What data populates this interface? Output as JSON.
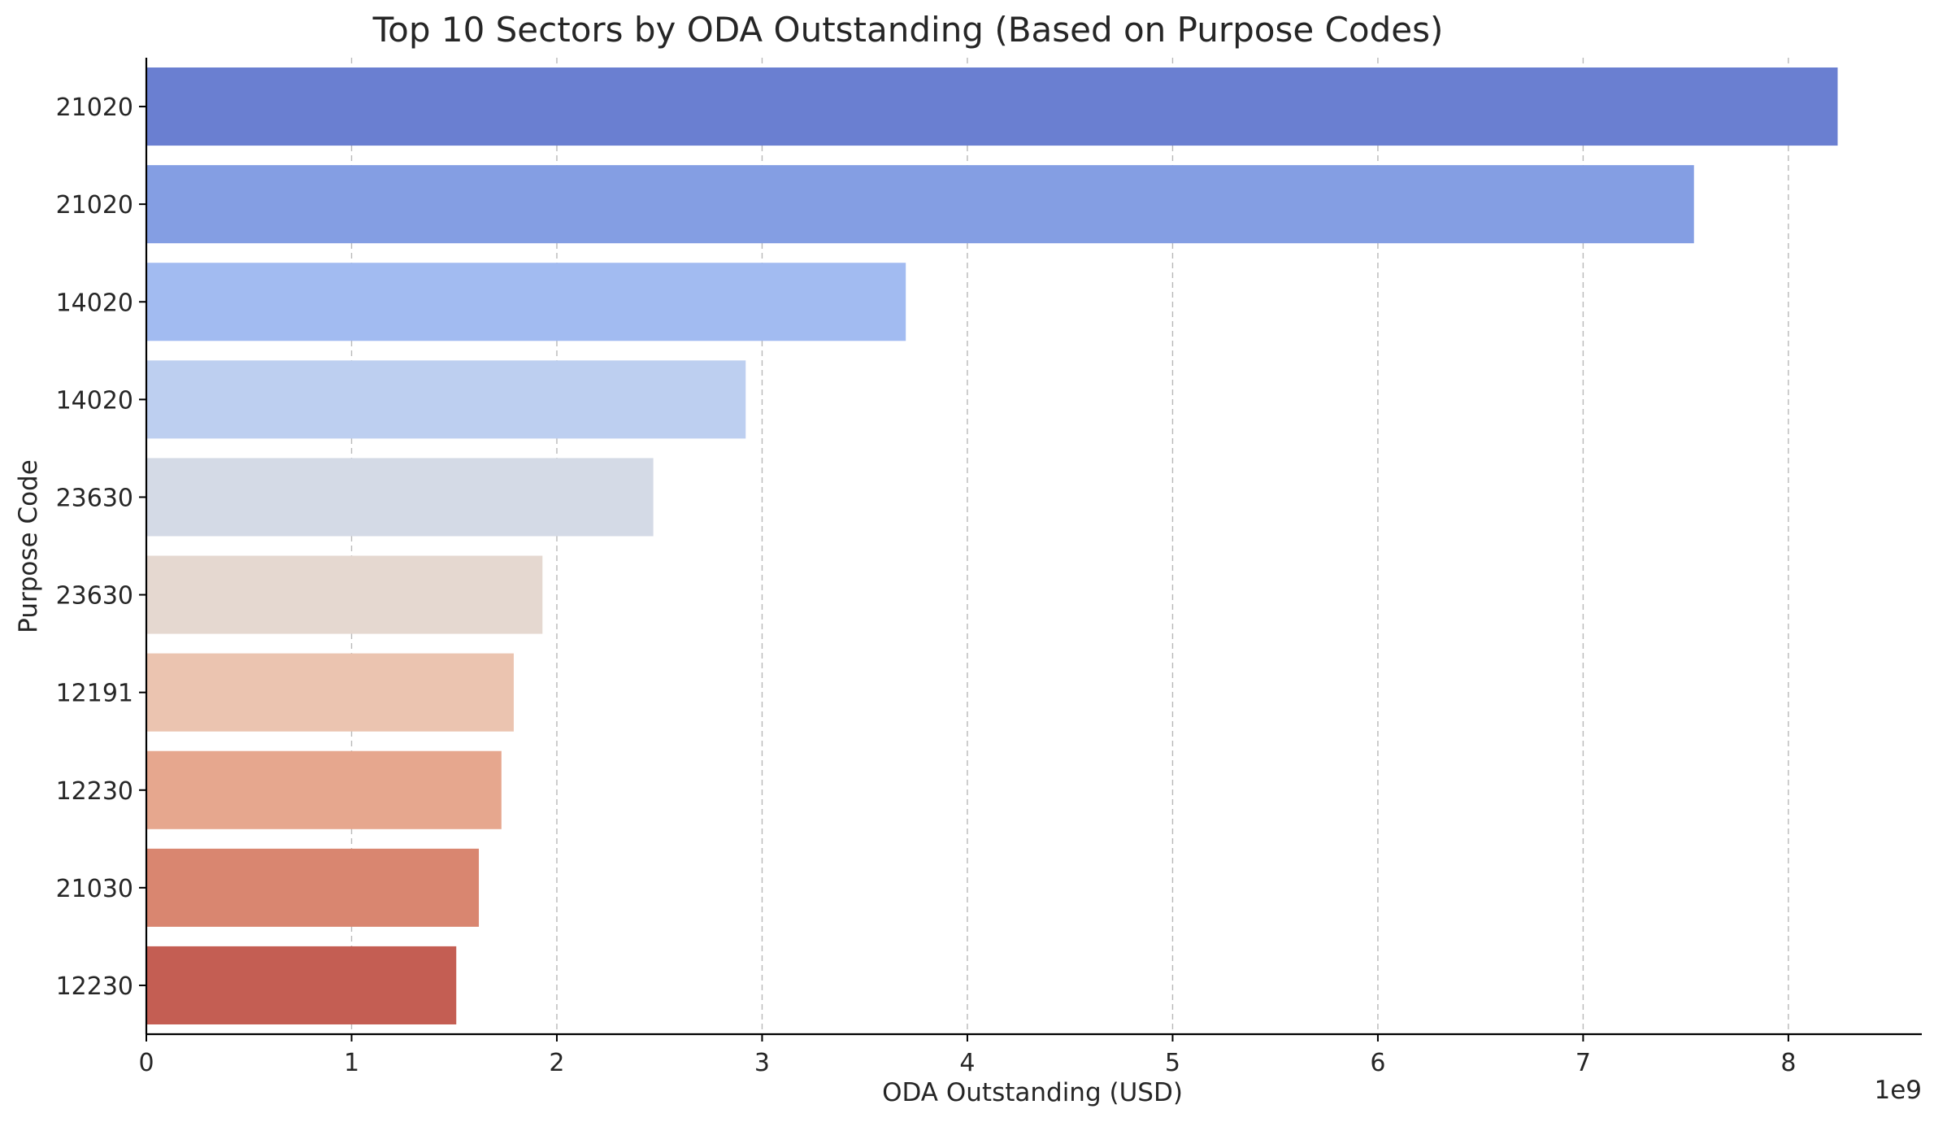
{
  "chart_data": {
    "type": "bar",
    "orientation": "horizontal",
    "title": "Top 10 Sectors by ODA Outstanding (Based on Purpose Codes)",
    "xlabel": "ODA Outstanding (USD)",
    "ylabel": "Purpose Code",
    "x_scale_label": "1e9",
    "xlim": [
      0,
      8.65
    ],
    "xticks": [
      0,
      1,
      2,
      3,
      4,
      5,
      6,
      7,
      8
    ],
    "grid": "vertical dashed",
    "categories": [
      "21020",
      "21020",
      "14020",
      "14020",
      "23630",
      "23630",
      "12191",
      "12230",
      "21030",
      "12230"
    ],
    "values": [
      8.24,
      7.54,
      3.7,
      2.92,
      2.47,
      1.93,
      1.79,
      1.73,
      1.62,
      1.51
    ],
    "colors": [
      "#6a7fd1",
      "#849ee3",
      "#a2bbf1",
      "#bdcff0",
      "#d4dae6",
      "#e5d8d0",
      "#ebc4b0",
      "#e6a78e",
      "#d98670",
      "#c45e53"
    ]
  }
}
